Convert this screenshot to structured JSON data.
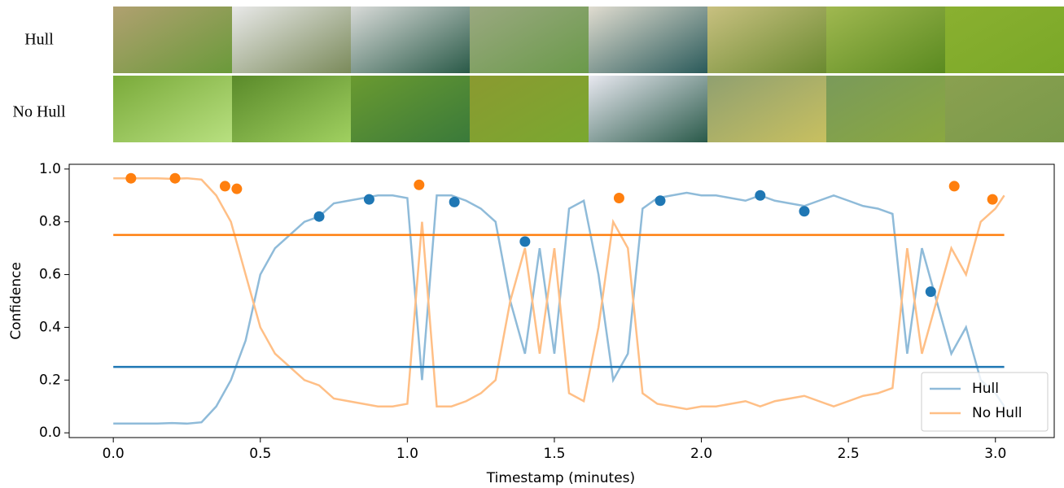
{
  "image_strip": {
    "rows": [
      {
        "label": "Hull"
      },
      {
        "label": "No Hull"
      }
    ]
  },
  "chart_data": {
    "type": "line",
    "xlabel": "Timestamp (minutes)",
    "ylabel": "Confidence",
    "xlim": [
      -0.15,
      3.2
    ],
    "ylim": [
      -0.018,
      1.018
    ],
    "xticks": [
      {
        "value": 0,
        "label": "0.0"
      },
      {
        "value": 0.5,
        "label": "0.5"
      },
      {
        "value": 1,
        "label": "1.0"
      },
      {
        "value": 1.5,
        "label": "1.5"
      },
      {
        "value": 2,
        "label": "2.0"
      },
      {
        "value": 2.5,
        "label": "2.5"
      },
      {
        "value": 3,
        "label": "3.0"
      }
    ],
    "yticks": [
      {
        "value": 0,
        "label": "0.0"
      },
      {
        "value": 0.2,
        "label": "0.2"
      },
      {
        "value": 0.4,
        "label": "0.4"
      },
      {
        "value": 0.6,
        "label": "0.6"
      },
      {
        "value": 0.8,
        "label": "0.8"
      },
      {
        "value": 1,
        "label": "1.0"
      }
    ],
    "legend": "lower right",
    "x": [
      0,
      0.05,
      0.1,
      0.15,
      0.2,
      0.25,
      0.3,
      0.35,
      0.4,
      0.45,
      0.5,
      0.55,
      0.6,
      0.65,
      0.7,
      0.75,
      0.8,
      0.85,
      0.9,
      0.95,
      1.0,
      1.05,
      1.1,
      1.15,
      1.2,
      1.25,
      1.3,
      1.35,
      1.4,
      1.45,
      1.5,
      1.55,
      1.6,
      1.65,
      1.7,
      1.75,
      1.8,
      1.85,
      1.9,
      1.95,
      2.0,
      2.05,
      2.1,
      2.15,
      2.2,
      2.25,
      2.3,
      2.35,
      2.4,
      2.45,
      2.5,
      2.55,
      2.6,
      2.65,
      2.7,
      2.75,
      2.8,
      2.85,
      2.9,
      2.95,
      3.0,
      3.03
    ],
    "series": [
      {
        "name": "Hull",
        "color": "#8fbbd9",
        "values": [
          0.035,
          0.035,
          0.035,
          0.035,
          0.037,
          0.035,
          0.04,
          0.1,
          0.2,
          0.35,
          0.6,
          0.7,
          0.75,
          0.8,
          0.82,
          0.87,
          0.88,
          0.89,
          0.9,
          0.9,
          0.89,
          0.2,
          0.9,
          0.9,
          0.88,
          0.85,
          0.8,
          0.5,
          0.3,
          0.7,
          0.3,
          0.85,
          0.88,
          0.6,
          0.2,
          0.3,
          0.85,
          0.89,
          0.9,
          0.91,
          0.9,
          0.9,
          0.89,
          0.88,
          0.9,
          0.88,
          0.87,
          0.86,
          0.88,
          0.9,
          0.88,
          0.86,
          0.85,
          0.83,
          0.3,
          0.7,
          0.5,
          0.3,
          0.4,
          0.2,
          0.15,
          0.1
        ]
      },
      {
        "name": "No Hull",
        "color": "#ffbf86",
        "values": [
          0.965,
          0.965,
          0.965,
          0.965,
          0.963,
          0.965,
          0.96,
          0.9,
          0.8,
          0.6,
          0.4,
          0.3,
          0.25,
          0.2,
          0.18,
          0.13,
          0.12,
          0.11,
          0.1,
          0.1,
          0.11,
          0.8,
          0.1,
          0.1,
          0.12,
          0.15,
          0.2,
          0.5,
          0.7,
          0.3,
          0.7,
          0.15,
          0.12,
          0.4,
          0.8,
          0.7,
          0.15,
          0.11,
          0.1,
          0.09,
          0.1,
          0.1,
          0.11,
          0.12,
          0.1,
          0.12,
          0.13,
          0.14,
          0.12,
          0.1,
          0.12,
          0.14,
          0.15,
          0.17,
          0.7,
          0.3,
          0.5,
          0.7,
          0.6,
          0.8,
          0.85,
          0.9
        ]
      }
    ],
    "hlines": [
      {
        "value": 0.25,
        "color": "#1f77b4"
      },
      {
        "value": 0.75,
        "color": "#ff7f0e"
      }
    ],
    "markers": [
      {
        "color": "#1f77b4",
        "x": [
          0.7,
          0.87,
          1.16,
          1.4,
          1.86,
          2.2,
          2.35,
          2.78
        ],
        "values": [
          0.82,
          0.885,
          0.875,
          0.725,
          0.88,
          0.9,
          0.84,
          0.535
        ]
      },
      {
        "color": "#ff7f0e",
        "x": [
          0.06,
          0.21,
          0.38,
          0.42,
          1.04,
          1.72,
          2.86,
          2.99
        ],
        "values": [
          0.965,
          0.965,
          0.935,
          0.925,
          0.94,
          0.89,
          0.935,
          0.885
        ]
      }
    ]
  }
}
